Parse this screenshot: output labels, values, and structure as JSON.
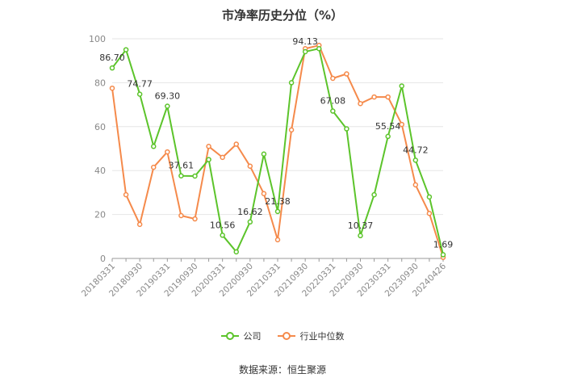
{
  "chart_data": {
    "type": "line",
    "title": "市净率历史分位（%）",
    "x": [
      "20180331",
      "20180630",
      "20180930",
      "20181231",
      "20190331",
      "20190630",
      "20190930",
      "20191231",
      "20200331",
      "20200630",
      "20200930",
      "20201231",
      "20210331",
      "20210630",
      "20210930",
      "20211231",
      "20220331",
      "20220630",
      "20220930",
      "20221231",
      "20230331",
      "20230630",
      "20230930",
      "20231231",
      "20240426"
    ],
    "x_tick_labels": [
      "20180331",
      "20180930",
      "20190331",
      "20190930",
      "20200331",
      "20200930",
      "20210331",
      "20210930",
      "20220331",
      "20220930",
      "20230331",
      "20230930",
      "20240426"
    ],
    "ylim": [
      0,
      100
    ],
    "y_ticks": [
      0,
      20,
      40,
      60,
      80,
      100
    ],
    "grid": true,
    "legend_position": "bottom",
    "series": [
      {
        "name": "公司",
        "color": "#5cc42b",
        "values": [
          86.7,
          95.0,
          74.77,
          51.0,
          69.3,
          37.61,
          37.5,
          45.0,
          10.56,
          3.0,
          16.62,
          47.5,
          21.38,
          80.0,
          94.13,
          95.5,
          67.08,
          59.0,
          10.37,
          29.0,
          55.54,
          78.5,
          44.72,
          28.0,
          1.69
        ],
        "data_labels": {
          "0": "86.70",
          "2": "74.77",
          "4": "69.30",
          "5": "37.61",
          "8": "10.56",
          "10": "16.62",
          "12": "21.38",
          "14": "94.13",
          "16": "67.08",
          "18": "10.37",
          "20": "55.54",
          "22": "44.72",
          "24": "1.69"
        }
      },
      {
        "name": "行业中位数",
        "color": "#f58a4b",
        "values": [
          77.5,
          29.0,
          15.5,
          41.5,
          48.5,
          19.5,
          18.0,
          51.0,
          46.0,
          52.0,
          42.0,
          29.5,
          8.5,
          58.5,
          95.5,
          97.0,
          82.0,
          84.0,
          70.5,
          73.5,
          73.5,
          61.0,
          33.5,
          20.5,
          0.5
        ]
      }
    ]
  },
  "footer": {
    "source": "数据来源：恒生聚源"
  }
}
